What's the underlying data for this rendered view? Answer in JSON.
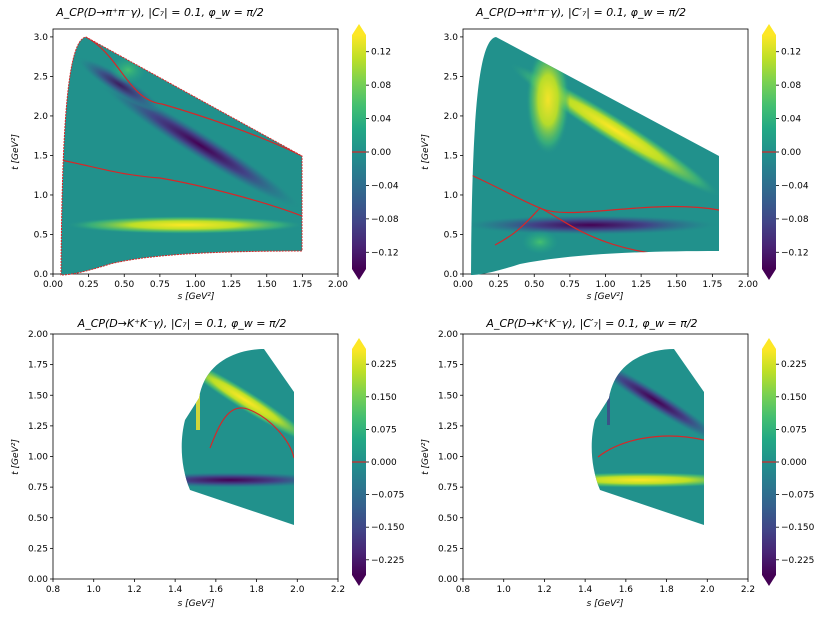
{
  "colors": {
    "contour_zero": "#d62728",
    "frame": "#000000",
    "viridis": [
      "#440154",
      "#482475",
      "#414487",
      "#355f8d",
      "#2a788e",
      "#21918c",
      "#22a884",
      "#44bf70",
      "#7ad151",
      "#bddf26",
      "#fde725"
    ]
  },
  "chart_data": [
    {
      "type": "contour",
      "title": "A_CP(D→π⁺π⁻γ),  |C₇| = 0.1,  φ_w = π/2",
      "xlabel": "s [GeV²]",
      "ylabel": "t [GeV²]",
      "xlim": [
        0.0,
        2.0
      ],
      "ylim": [
        0.0,
        3.1
      ],
      "x_ticks": [
        "0.00",
        "0.25",
        "0.50",
        "0.75",
        "1.00",
        "1.25",
        "1.50",
        "1.75",
        "2.00"
      ],
      "y_ticks": [
        "0.0",
        "0.5",
        "1.0",
        "1.5",
        "2.0",
        "2.5",
        "3.0"
      ],
      "colorbar_range": [
        -0.14,
        0.14
      ],
      "colorbar_ticks": [
        "0.12",
        "0.08",
        "0.04",
        "0.00",
        "−0.04",
        "−0.08",
        "−0.12"
      ],
      "zero_level": 0.0,
      "features": [
        {
          "kind": "negative band",
          "along": "upper-left to lower-right diagonal",
          "peak": -0.14
        },
        {
          "kind": "positive band",
          "at_t": 0.6,
          "peak": 0.12
        }
      ]
    },
    {
      "type": "contour",
      "title": "A_CP(D→π⁺π⁻γ),  |C′₇| = 0.1,  φ_w = π/2",
      "xlabel": "s [GeV²]",
      "ylabel": "t [GeV²]",
      "xlim": [
        0.0,
        2.0
      ],
      "ylim": [
        0.0,
        3.1
      ],
      "x_ticks": [
        "0.00",
        "0.25",
        "0.50",
        "0.75",
        "1.00",
        "1.25",
        "1.50",
        "1.75",
        "2.00"
      ],
      "y_ticks": [
        "0.0",
        "0.5",
        "1.0",
        "1.5",
        "2.0",
        "2.5",
        "3.0"
      ],
      "colorbar_range": [
        -0.14,
        0.14
      ],
      "colorbar_ticks": [
        "0.12",
        "0.08",
        "0.04",
        "0.00",
        "−0.04",
        "−0.08",
        "−0.12"
      ],
      "zero_level": 0.0,
      "features": [
        {
          "kind": "positive band",
          "along": "upper-left to lower-right diagonal",
          "peak": 0.14
        },
        {
          "kind": "negative band",
          "at_t": 0.6,
          "peak": -0.12
        }
      ]
    },
    {
      "type": "contour",
      "title": "A_CP(D→K⁺K⁻γ),  |C₇| = 0.1,  φ_w = π/2",
      "xlabel": "s [GeV²]",
      "ylabel": "t [GeV²]",
      "xlim": [
        0.8,
        2.2
      ],
      "ylim": [
        0.0,
        2.0
      ],
      "x_ticks": [
        "0.8",
        "1.0",
        "1.2",
        "1.4",
        "1.6",
        "1.8",
        "2.0",
        "2.2"
      ],
      "y_ticks": [
        "0.00",
        "0.25",
        "0.50",
        "0.75",
        "1.00",
        "1.25",
        "1.50",
        "1.75",
        "2.00"
      ],
      "colorbar_range": [
        -0.26,
        0.26
      ],
      "colorbar_ticks": [
        "0.225",
        "0.150",
        "0.075",
        "0.000",
        "−0.075",
        "−0.150",
        "−0.225"
      ],
      "zero_level": 0.0,
      "features": [
        {
          "kind": "positive band",
          "along": "diagonal",
          "peak": 0.26
        },
        {
          "kind": "negative band",
          "at_t": 0.8,
          "peak": -0.26
        }
      ]
    },
    {
      "type": "contour",
      "title": "A_CP(D→K⁺K⁻γ),  |C′₇| = 0.1,  φ_w = π/2",
      "xlabel": "s [GeV²]",
      "ylabel": "t [GeV²]",
      "xlim": [
        0.8,
        2.2
      ],
      "ylim": [
        0.0,
        2.0
      ],
      "x_ticks": [
        "0.8",
        "1.0",
        "1.2",
        "1.4",
        "1.6",
        "1.8",
        "2.0",
        "2.2"
      ],
      "y_ticks": [
        "0.00",
        "0.25",
        "0.50",
        "0.75",
        "1.00",
        "1.25",
        "1.50",
        "1.75",
        "2.00"
      ],
      "colorbar_range": [
        -0.26,
        0.26
      ],
      "colorbar_ticks": [
        "0.225",
        "0.150",
        "0.075",
        "0.000",
        "−0.075",
        "−0.150",
        "−0.225"
      ],
      "zero_level": 0.0,
      "features": [
        {
          "kind": "negative band",
          "along": "diagonal",
          "peak": -0.26
        },
        {
          "kind": "positive band",
          "at_t": 0.8,
          "peak": 0.26
        }
      ]
    }
  ]
}
